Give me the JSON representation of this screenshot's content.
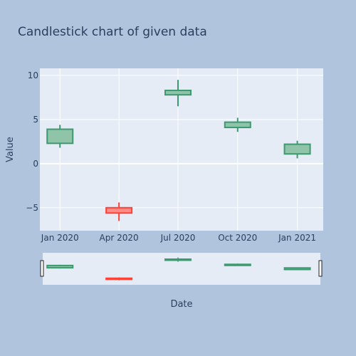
{
  "chart_data": {
    "type": "candlestick",
    "title": "Candlestick chart of given data",
    "xlabel": "Date",
    "ylabel": "Value",
    "ylim": [
      -7.6,
      10.8
    ],
    "yticks": [
      -5,
      0,
      5,
      10
    ],
    "ytick_labels": [
      "−5",
      "0",
      "5",
      "10"
    ],
    "xlim": [
      "2019-12-01",
      "2021-02-10"
    ],
    "xticks": [
      "2020-01-01",
      "2020-04-01",
      "2020-07-01",
      "2020-10-01",
      "2021-01-01"
    ],
    "xtick_labels": [
      "Jan 2020",
      "Apr 2020",
      "Jul 2020",
      "Oct 2020",
      "Jan 2021"
    ],
    "grid": true,
    "rangeslider": true,
    "candles": [
      {
        "date": "2020-01-01",
        "open": 2.3,
        "high": 4.4,
        "low": 1.8,
        "close": 3.9
      },
      {
        "date": "2020-04-01",
        "open": -5.0,
        "high": -4.4,
        "low": -6.5,
        "close": -5.6
      },
      {
        "date": "2020-07-01",
        "open": 7.8,
        "high": 9.5,
        "low": 6.5,
        "close": 8.3
      },
      {
        "date": "2020-10-01",
        "open": 4.1,
        "high": 5.2,
        "low": 3.6,
        "close": 4.7
      },
      {
        "date": "2021-01-01",
        "open": 1.1,
        "high": 2.6,
        "low": 0.6,
        "close": 2.2
      }
    ],
    "colors": {
      "increasing_line": "#3d9970",
      "increasing_fill": "#8fc4a9",
      "decreasing_line": "#ff4136",
      "decreasing_fill": "#ff8c85",
      "plot_bg": "#e5ecf6",
      "paper_bg": "#b0c4de",
      "text": "#2a3f5f"
    }
  }
}
